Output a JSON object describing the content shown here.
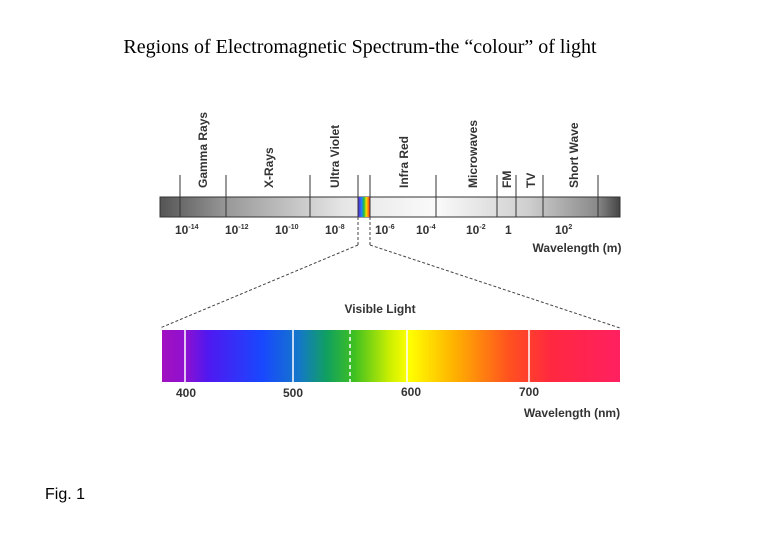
{
  "title": "Regions of Electromagnetic Spectrum-the “colour” of light",
  "spectrum": {
    "regions": [
      "Gamma Rays",
      "X-Rays",
      "Ultra Violet",
      "Infra Red",
      "Microwaves",
      "FM",
      "TV",
      "Short Wave"
    ],
    "ticks": [
      {
        "base": "10",
        "exp": "-14"
      },
      {
        "base": "10",
        "exp": "-12"
      },
      {
        "base": "10",
        "exp": "-10"
      },
      {
        "base": "10",
        "exp": "-8"
      },
      {
        "base": "10",
        "exp": "-6"
      },
      {
        "base": "10",
        "exp": "-4"
      },
      {
        "base": "10",
        "exp": "-2"
      },
      {
        "base": "1"
      },
      {
        "base": "10",
        "exp": "2"
      }
    ],
    "axis_label": "Wavelength (m)"
  },
  "visible": {
    "label": "Visible Light",
    "ticks": [
      400,
      500,
      600,
      700
    ],
    "axis_label": "Wavelength (nm)"
  },
  "caption": "Fig. 1"
}
